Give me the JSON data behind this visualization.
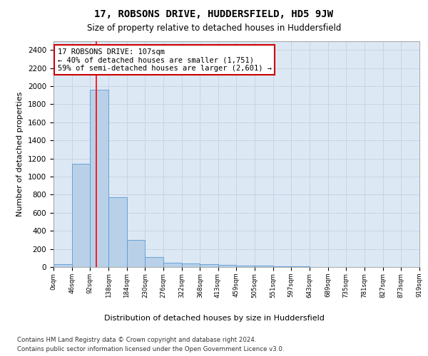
{
  "title": "17, ROBSONS DRIVE, HUDDERSFIELD, HD5 9JW",
  "subtitle": "Size of property relative to detached houses in Huddersfield",
  "xlabel": "Distribution of detached houses by size in Huddersfield",
  "ylabel": "Number of detached properties",
  "footnote1": "Contains HM Land Registry data © Crown copyright and database right 2024.",
  "footnote2": "Contains public sector information licensed under the Open Government Licence v3.0.",
  "bar_color": "#b8d0e8",
  "bar_edge_color": "#5b9bd5",
  "grid_color": "#c8d4e4",
  "background_color": "#dce8f4",
  "annotation_text_line1": "17 ROBSONS DRIVE: 107sqm",
  "annotation_text_line2": "← 40% of detached houses are smaller (1,751)",
  "annotation_text_line3": "59% of semi-detached houses are larger (2,601) →",
  "vline_x": 107,
  "ylim": [
    0,
    2500
  ],
  "yticks": [
    0,
    200,
    400,
    600,
    800,
    1000,
    1200,
    1400,
    1600,
    1800,
    2000,
    2200,
    2400
  ],
  "bin_edges": [
    0,
    46,
    92,
    138,
    184,
    230,
    276,
    322,
    368,
    413,
    459,
    505,
    551,
    597,
    643,
    689,
    735,
    781,
    827,
    873,
    919
  ],
  "bar_heights": [
    35,
    1140,
    1960,
    775,
    300,
    110,
    50,
    40,
    30,
    20,
    15,
    15,
    10,
    5,
    3,
    2,
    2,
    1,
    1,
    1
  ],
  "tick_labels": [
    "0sqm",
    "46sqm",
    "92sqm",
    "138sqm",
    "184sqm",
    "230sqm",
    "276sqm",
    "322sqm",
    "368sqm",
    "413sqm",
    "459sqm",
    "505sqm",
    "551sqm",
    "597sqm",
    "643sqm",
    "689sqm",
    "735sqm",
    "781sqm",
    "827sqm",
    "873sqm",
    "919sqm"
  ]
}
